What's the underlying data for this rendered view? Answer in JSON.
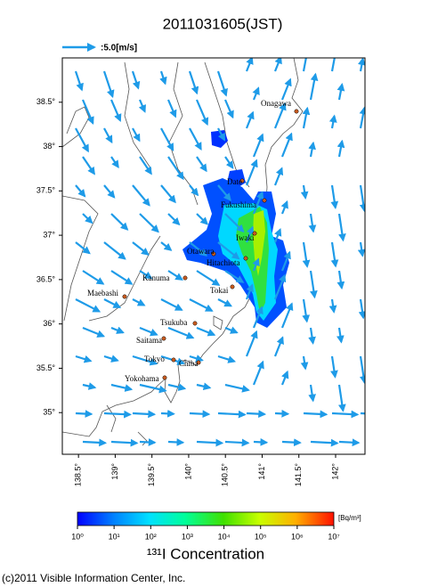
{
  "title": "2011031605(JST)",
  "wind_legend": ":5.0[m/s]",
  "map": {
    "xlim": [
      138.28,
      142.4
    ],
    "ylim": [
      34.53,
      39.0
    ],
    "lat_ticks": [
      {
        "value": 38.5,
        "label": "38.5°"
      },
      {
        "value": 38,
        "label": "38°"
      },
      {
        "value": 37.5,
        "label": "37.5°"
      },
      {
        "value": 37,
        "label": "37°"
      },
      {
        "value": 36.5,
        "label": "36.5°"
      },
      {
        "value": 36,
        "label": "36°"
      },
      {
        "value": 35.5,
        "label": "35.5°"
      },
      {
        "value": 35,
        "label": "35°"
      }
    ],
    "lon_ticks": [
      {
        "value": 138.5,
        "label": "138.5°"
      },
      {
        "value": 139,
        "label": "139°"
      },
      {
        "value": 139.5,
        "label": "139.5°"
      },
      {
        "value": 140,
        "label": "140°"
      },
      {
        "value": 140.5,
        "label": "140.5°"
      },
      {
        "value": 141,
        "label": "141°"
      },
      {
        "value": 141.5,
        "label": "141.5°"
      },
      {
        "value": 142,
        "label": "142°"
      }
    ],
    "places": [
      "Onagawa",
      "Date",
      "Fukushima",
      "Iwaki",
      "Otawara",
      "Hitachiota",
      "Kanuma",
      "Tokai",
      "Maebashi",
      "Tsukuba",
      "Saitama",
      "Tokyo",
      "Chiba",
      "Yokohama"
    ]
  },
  "colorbar": {
    "ticks": [
      {
        "value": 0,
        "label": "10⁰"
      },
      {
        "value": 1,
        "label": "10¹"
      },
      {
        "value": 2,
        "label": "10²"
      },
      {
        "value": 3,
        "label": "10³"
      },
      {
        "value": 4,
        "label": "10⁴"
      },
      {
        "value": 5,
        "label": "10⁵"
      },
      {
        "value": 6,
        "label": "10⁶"
      },
      {
        "value": 7,
        "label": "10⁷"
      }
    ],
    "unit": "[Bq/m³]",
    "label": "¹³¹I Concentration"
  },
  "copyright": "(c)2011 Visible Information Center, Inc."
}
